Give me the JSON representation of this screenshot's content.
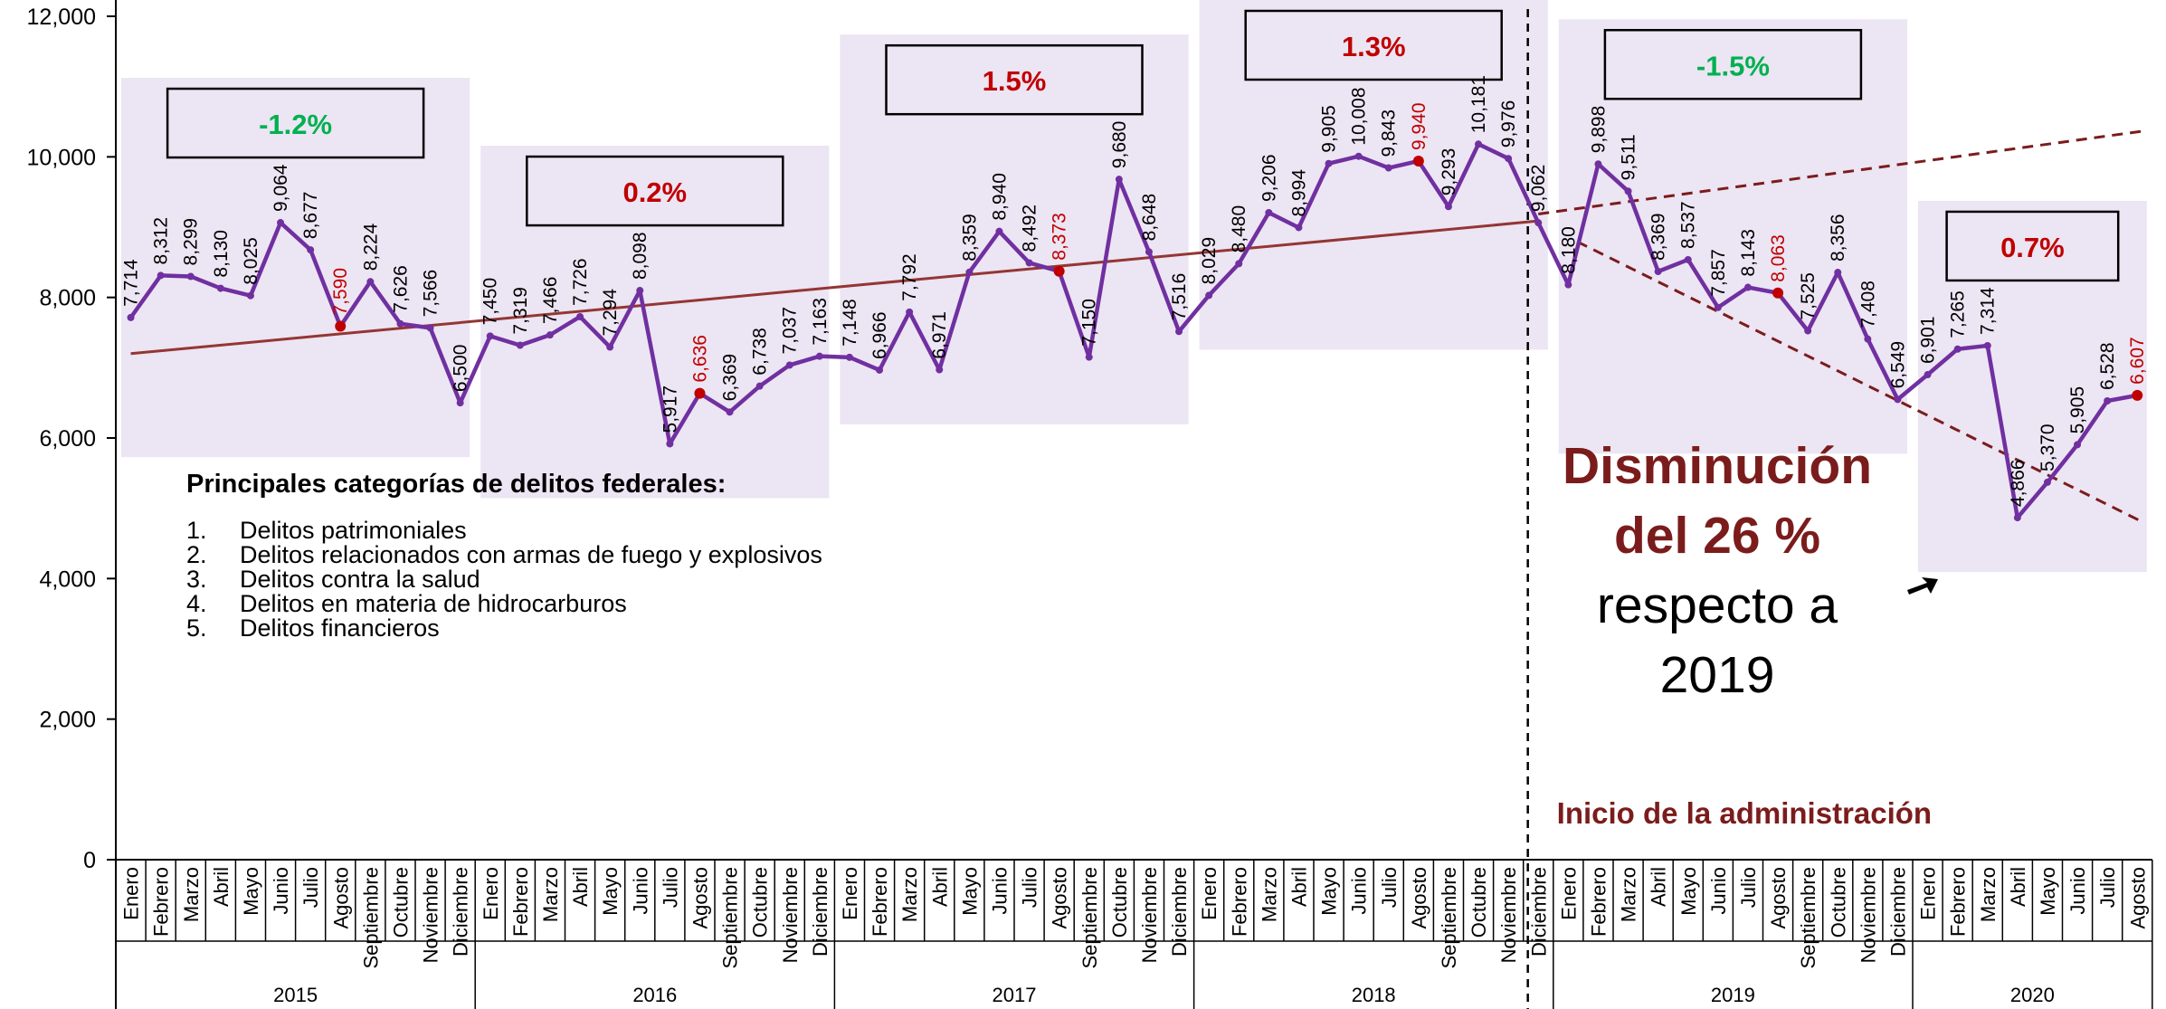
{
  "chart_data": {
    "type": "line",
    "categories": [
      "Enero",
      "Febrero",
      "Marzo",
      "Abril",
      "Mayo",
      "Junio",
      "Julio",
      "Agosto",
      "Septiembre",
      "Octubre",
      "Noviembre",
      "Diciembre",
      "Enero",
      "Febrero",
      "Marzo",
      "Abril",
      "Mayo",
      "Junio",
      "Julio",
      "Agosto",
      "Septiembre",
      "Octubre",
      "Noviembre",
      "Diciembre",
      "Enero",
      "Febrero",
      "Marzo",
      "Abril",
      "Mayo",
      "Junio",
      "Julio",
      "Agosto",
      "Septiembre",
      "Octubre",
      "Noviembre",
      "Diciembre",
      "Enero",
      "Febrero",
      "Marzo",
      "Abril",
      "Mayo",
      "Junio",
      "Julio",
      "Agosto",
      "Septiembre",
      "Octubre",
      "Noviembre",
      "Diciembre",
      "Enero",
      "Febrero",
      "Marzo",
      "Abril",
      "Mayo",
      "Junio",
      "Julio",
      "Agosto",
      "Septiembre",
      "Octubre",
      "Noviembre",
      "Diciembre",
      "Enero",
      "Febrero",
      "Marzo",
      "Abril",
      "Mayo",
      "Junio",
      "Julio",
      "Agosto"
    ],
    "values": [
      7714,
      8312,
      8299,
      8130,
      8025,
      9064,
      8677,
      7590,
      8224,
      7626,
      7566,
      6500,
      7450,
      7319,
      7466,
      7726,
      7294,
      8098,
      5917,
      6636,
      6369,
      6738,
      7037,
      7163,
      7148,
      6966,
      7792,
      6971,
      8359,
      8940,
      8492,
      8373,
      7150,
      9680,
      8648,
      7516,
      8029,
      8480,
      9206,
      8994,
      9905,
      10008,
      9843,
      9940,
      9293,
      10181,
      9976,
      9062,
      8180,
      9898,
      9511,
      8369,
      8537,
      7857,
      8143,
      8063,
      7525,
      8356,
      7408,
      6549,
      6901,
      7265,
      7314,
      4866,
      5370,
      5905,
      6528,
      6607
    ],
    "value_labels": [
      "7,714",
      "8,312",
      "8,299",
      "8,130",
      "8,025",
      "9,064",
      "8,677",
      "7,590",
      "8,224",
      "7,626",
      "7,566",
      "6,500",
      "7,450",
      "7,319",
      "7,466",
      "7,726",
      "7,294",
      "8,098",
      "5,917",
      "6,636",
      "6,369",
      "6,738",
      "7,037",
      "7,163",
      "7,148",
      "6,966",
      "7,792",
      "6,971",
      "8,359",
      "8,940",
      "8,492",
      "8,373",
      "7,150",
      "9,680",
      "8,648",
      "7,516",
      "8,029",
      "8,480",
      "9,206",
      "8,994",
      "9,905",
      "10,008",
      "9,843",
      "9,940",
      "9,293",
      "10,181",
      "9,976",
      "9,062",
      "8,180",
      "9,898",
      "9,511",
      "8,369",
      "8,537",
      "7,857",
      "8,143",
      "8,063",
      "7,525",
      "8,356",
      "7,408",
      "6,549",
      "6,901",
      "7,265",
      "7,314",
      "4,866",
      "5,370",
      "5,905",
      "6,528",
      "6,607"
    ],
    "color": "#7030a0",
    "highlight": {
      "category": "Agosto",
      "color": "#c00000"
    },
    "year_groups": [
      {
        "label": "2015",
        "change": "-1.2%",
        "change_color": "#00b050"
      },
      {
        "label": "2016",
        "change": "0.2%",
        "change_color": "#c00000"
      },
      {
        "label": "2017",
        "change": "1.5%",
        "change_color": "#c00000"
      },
      {
        "label": "2018",
        "change": "1.3%",
        "change_color": "#c00000"
      },
      {
        "label": "2019",
        "change": "-1.5%",
        "change_color": "#00b050"
      },
      {
        "label": "2020",
        "change": "0.7%",
        "change_color": "#c00000"
      }
    ],
    "trend_lines": [
      {
        "from": [
          0,
          7200
        ],
        "to": [
          47,
          9088
        ],
        "dashed": false,
        "color": "#943634"
      },
      {
        "from": [
          47,
          9187
        ],
        "to": [
          67.2,
          10367
        ],
        "dashed": true,
        "color": "#7b1c1c"
      },
      {
        "from": [
          48.3,
          8793
        ],
        "to": [
          67.2,
          4800
        ],
        "dashed": true,
        "color": "#7b1c1c"
      }
    ],
    "ylim": [
      0,
      12000
    ],
    "yticks": [
      0,
      {
        "value": 2000,
        "label": "2,000"
      },
      {
        "value": 4000,
        "label": "4,000"
      },
      {
        "value": 6000,
        "label": "6,000"
      },
      {
        "value": 8000,
        "label": "8,000"
      },
      {
        "value": 10000,
        "label": "10,000"
      },
      {
        "value": 12000,
        "label": "12,000"
      }
    ],
    "vline_label": "Inicio de la administración",
    "callout": [
      "Disminución",
      "del 26 %",
      "respecto a",
      "2019"
    ],
    "notes_title": "Principales categorías de delitos federales:",
    "notes": [
      {
        "number": "1.",
        "text": "Delitos patrimoniales"
      },
      {
        "number": "2.",
        "text": "Delitos relacionados con armas de fuego y explosivos"
      },
      {
        "number": "3.",
        "text": "Delitos contra la salud"
      },
      {
        "number": "4.",
        "text": "Delitos en materia de hidrocarburos"
      },
      {
        "number": "5.",
        "text": "Delitos financieros"
      }
    ]
  }
}
